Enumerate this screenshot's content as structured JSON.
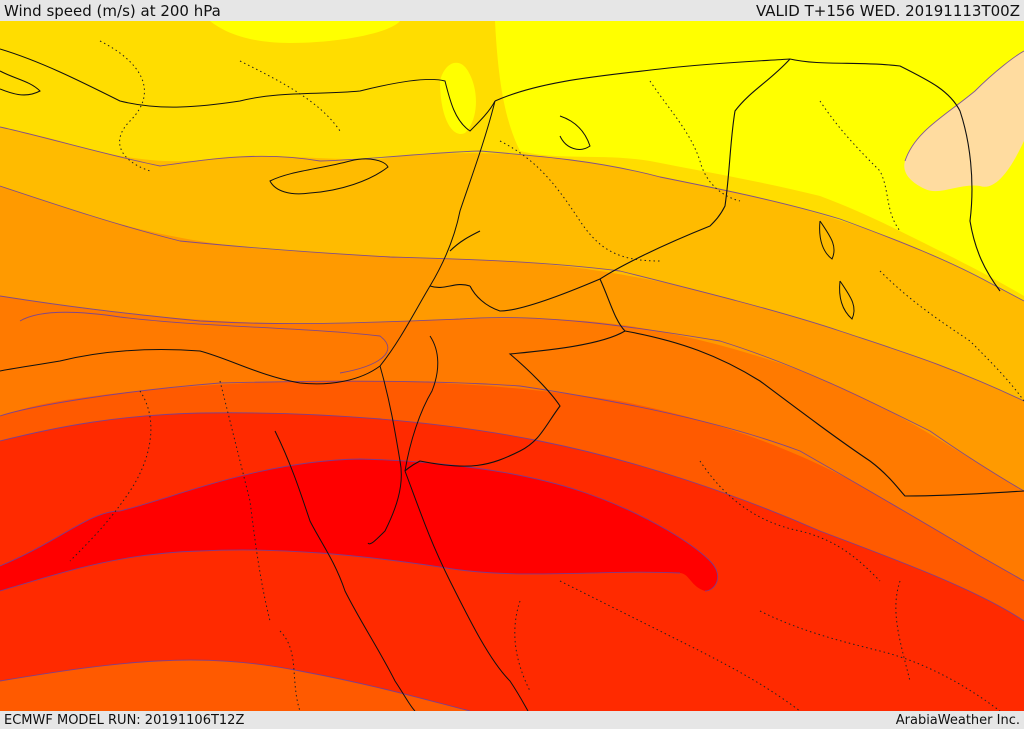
{
  "header": {
    "title": "Wind speed (m/s) at 200 hPa",
    "valid_time": "VALID T+156 WED. 20191113T00Z"
  },
  "footer": {
    "model_run": "ECMWF MODEL RUN: 20191106T12Z",
    "credit": "ArabiaWeather Inc."
  },
  "colors": {
    "band_1": "#ffff00",
    "band_2": "#ffdd00",
    "band_3": "#ffbb00",
    "band_4": "#ff9a00",
    "band_5": "#ff7a00",
    "band_6": "#ff5a00",
    "band_7": "#ff2a00",
    "band_8": "#ff0000",
    "low_pocket": "#ffdca0",
    "contour": "#6b3fa0"
  }
}
